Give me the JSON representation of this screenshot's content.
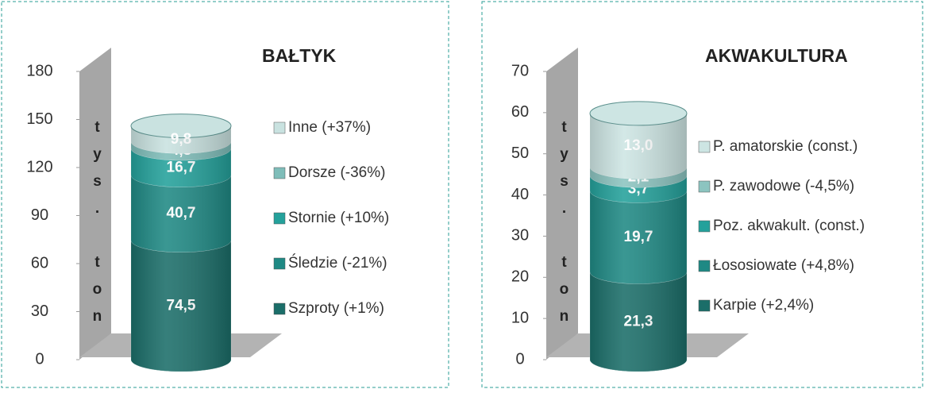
{
  "chart_data": [
    {
      "type": "stacked-cylinder",
      "title": "BAŁTYK",
      "y_label": "tys. ton",
      "categories": [
        null
      ],
      "ylim": [
        0,
        180
      ],
      "yticks": [
        0,
        30,
        60,
        90,
        120,
        150,
        180
      ],
      "series": [
        {
          "name": "Szproty (+1%)",
          "color": "#1b6e69",
          "values": [
            74.5
          ],
          "value_labels": [
            "74,5"
          ]
        },
        {
          "name": "Śledzie (-21%)",
          "color": "#1f8984",
          "values": [
            40.7
          ],
          "value_labels": [
            "40,7"
          ]
        },
        {
          "name": "Stornie (+10%)",
          "color": "#24a19b",
          "values": [
            16.7
          ],
          "value_labels": [
            "16,7"
          ]
        },
        {
          "name": "Dorsze (-36%)",
          "color": "#7fbdb9",
          "values": [
            4.3
          ],
          "value_labels": [
            "4,3"
          ]
        },
        {
          "name": "Inne (+37%)",
          "color": "#c9e2e0",
          "values": [
            9.8
          ],
          "value_labels": [
            "9,8"
          ]
        }
      ]
    },
    {
      "type": "stacked-cylinder",
      "title": "AKWAKULTURA",
      "y_label": "tys. ton",
      "categories": [
        null
      ],
      "ylim": [
        0,
        70
      ],
      "yticks": [
        0,
        10,
        20,
        30,
        40,
        50,
        60,
        70
      ],
      "series": [
        {
          "name": "Karpie (+2,4%)",
          "color": "#1b6e69",
          "values": [
            21.3
          ],
          "value_labels": [
            "21,3"
          ]
        },
        {
          "name": "Łososiowate (+4,8%)",
          "color": "#1f8984",
          "values": [
            19.7
          ],
          "value_labels": [
            "19,7"
          ]
        },
        {
          "name": "Poz. akwakult. (const.)",
          "color": "#24a19b",
          "values": [
            3.7
          ],
          "value_labels": [
            "3,7"
          ]
        },
        {
          "name": "P. zawodowe (-4,5%)",
          "color": "#8cc4c0",
          "values": [
            2.1
          ],
          "value_labels": [
            "2,1"
          ]
        },
        {
          "name": "P. amatorskie (const.)",
          "color": "#cde5e3",
          "values": [
            13.0
          ],
          "value_labels": [
            "13,0"
          ]
        }
      ]
    }
  ]
}
